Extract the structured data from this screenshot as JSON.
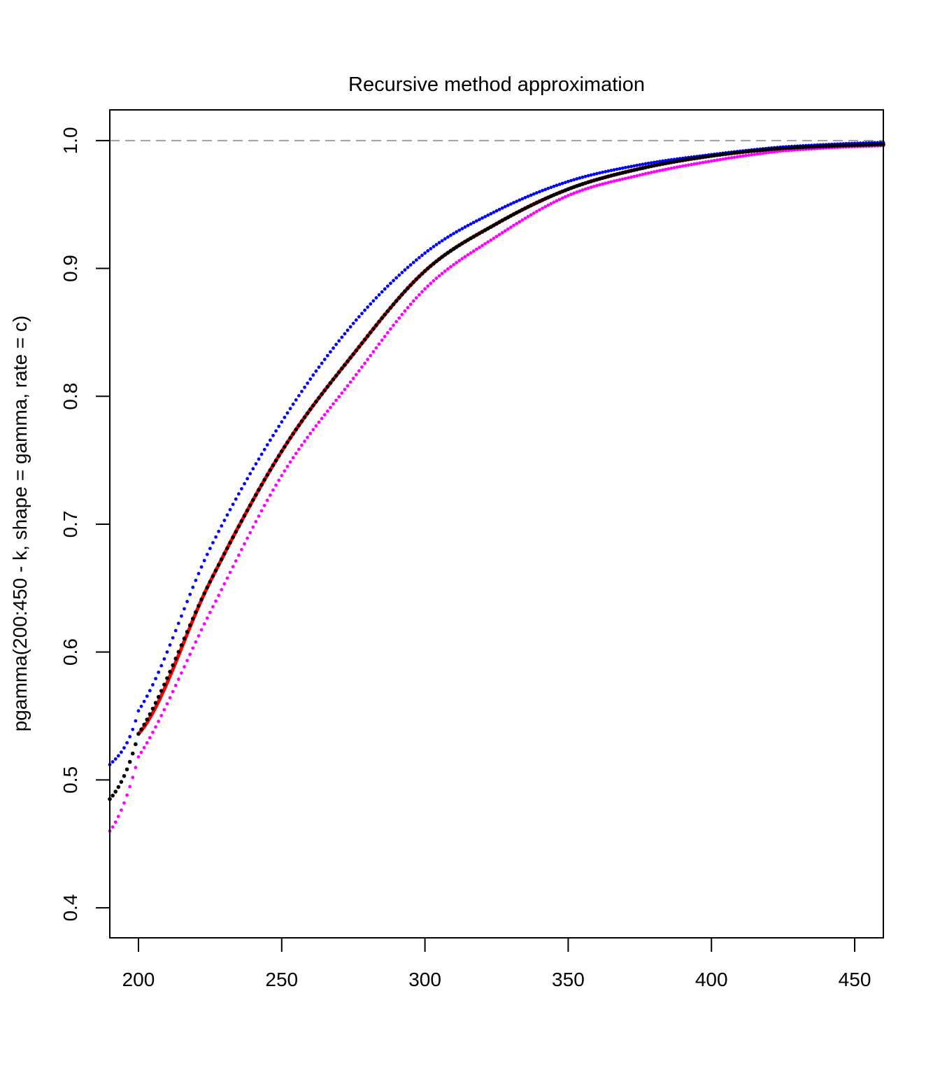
{
  "chart_data": {
    "type": "scatter",
    "title": "Recursive method approximation",
    "xlabel": "",
    "ylabel": "pgamma(200:450 - k, shape = gamma, rate = c)",
    "xlim": [
      190,
      460
    ],
    "ylim": [
      0.3765,
      1.024
    ],
    "x_ticks": [
      "200",
      "250",
      "300",
      "350",
      "400",
      "450"
    ],
    "y_ticks": [
      "0.4",
      "0.5",
      "0.6",
      "0.7",
      "0.8",
      "0.9",
      "1.0"
    ],
    "grid": false,
    "reference_line": {
      "y": 1.0,
      "style": "dashed",
      "color": "#a0a0a0"
    },
    "series": [
      {
        "name": "red-line",
        "kind": "line",
        "color": "#ff0000",
        "x": [
          200,
          225,
          250,
          275,
          300,
          325,
          350,
          375,
          400,
          425,
          460
        ],
        "y": [
          0.536,
          0.655,
          0.757,
          0.833,
          0.898,
          0.935,
          0.962,
          0.978,
          0.988,
          0.994,
          0.997
        ]
      },
      {
        "name": "magenta",
        "kind": "points",
        "color": "#ff00ff",
        "x": [
          190,
          200,
          225,
          250,
          275,
          300,
          325,
          350,
          375,
          400,
          425,
          460
        ],
        "y": [
          0.46,
          0.518,
          0.631,
          0.738,
          0.814,
          0.884,
          0.925,
          0.957,
          0.973,
          0.984,
          0.992,
          0.996
        ]
      },
      {
        "name": "blue",
        "kind": "points",
        "color": "#0000ff",
        "x": [
          190,
          200,
          225,
          250,
          275,
          300,
          325,
          350,
          375,
          400,
          425,
          460
        ],
        "y": [
          0.512,
          0.554,
          0.681,
          0.78,
          0.857,
          0.912,
          0.945,
          0.968,
          0.981,
          0.989,
          0.995,
          0.9985
        ]
      },
      {
        "name": "black",
        "kind": "points",
        "color": "#000000",
        "x": [
          190,
          200,
          225,
          250,
          275,
          300,
          325,
          350,
          375,
          400,
          425,
          460
        ],
        "y": [
          0.485,
          0.536,
          0.655,
          0.757,
          0.833,
          0.898,
          0.935,
          0.962,
          0.978,
          0.988,
          0.994,
          0.997
        ]
      }
    ]
  }
}
